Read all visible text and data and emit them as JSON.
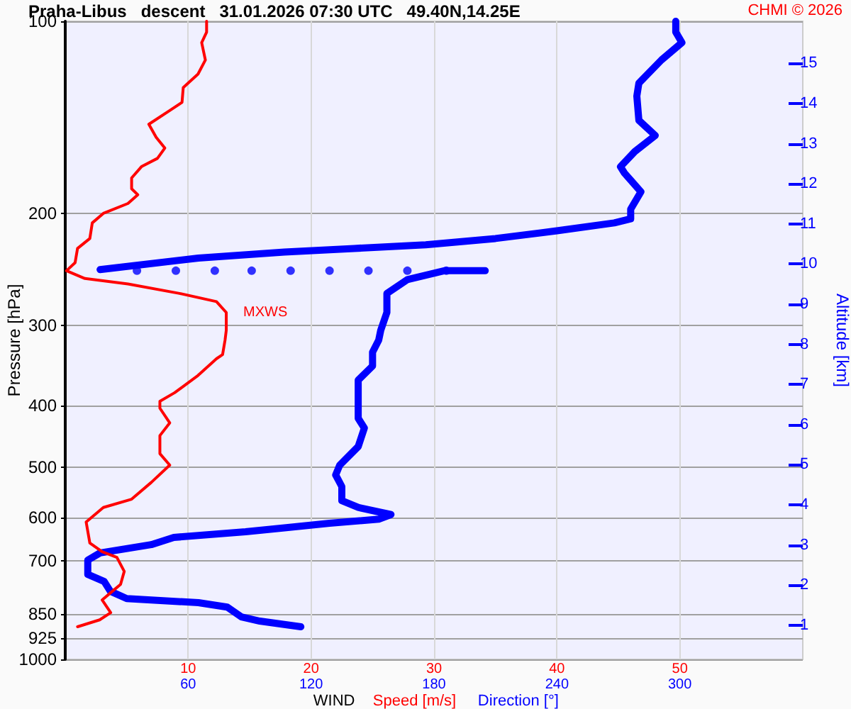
{
  "chart_data": {
    "type": "line",
    "title": "Praha-Libus   descent   31.01.2026 07:30 UTC   49.40N,14.25E",
    "annotations": [
      "CHMI © 2026",
      {
        "text": "MXWS",
        "x": 13.1,
        "y": 286
      }
    ],
    "xlabel": "WIND",
    "ylabel": "Pressure [hPa]",
    "y2label": "Altitude [km]",
    "xlim": [
      0,
      60
    ],
    "xticks": [
      10,
      20,
      30,
      40,
      50
    ],
    "x2lim": [
      0,
      360
    ],
    "x2ticks": [
      60,
      120,
      180,
      240,
      300
    ],
    "ylim": [
      1000,
      100
    ],
    "yticks": [
      100,
      200,
      300,
      400,
      500,
      600,
      700,
      850,
      925,
      1000
    ],
    "log": "y",
    "y2lim": [
      0.15,
      16.05
    ],
    "y2ticks": [
      1,
      2,
      3,
      4,
      5,
      6,
      7,
      8,
      9,
      10,
      11,
      12,
      13,
      14,
      15
    ],
    "grid": true,
    "legend": false,
    "series": [
      {
        "name": "Direction [°]",
        "color": "#0000ff",
        "axis": "x2",
        "marker": "none",
        "x": [
          298,
          298,
          301,
          291,
          280,
          279,
          280,
          288,
          278,
          271,
          273,
          281,
          276,
          276,
          268,
          240,
          210,
          176,
          141,
          107,
          65,
          17
        ],
        "values": [
          100,
          104,
          108,
          115,
          125,
          131,
          143,
          151,
          160,
          169,
          173,
          185,
          197,
          204,
          207,
          213,
          219,
          224,
          227,
          230,
          235,
          245
        ]
      },
      {
        "color": "#0000ff",
        "axis": "x2",
        "marker": "none",
        "x": [
          205,
          185,
          167,
          157,
          157,
          154,
          153,
          150,
          150,
          143,
          143,
          146,
          143,
          134,
          132,
          135,
          135,
          143,
          159,
          153,
          129,
          107,
          88,
          53,
          42,
          17,
          11,
          11,
          19,
          22,
          30,
          65,
          79,
          86,
          95,
          115
        ],
        "values": [
          246,
          246,
          254,
          267,
          286,
          305,
          316,
          330,
          347,
          365,
          419,
          434,
          464,
          496,
          514,
          536,
          564,
          578,
          593,
          603,
          612,
          622,
          631,
          644,
          661,
          681,
          699,
          736,
          755,
          782,
          803,
          815,
          828,
          858,
          871,
          889
        ]
      },
      {
        "type": "scatter",
        "color": "#0000ff",
        "axis": "x2",
        "marker": "circle",
        "x": [
          35,
          54,
          73,
          91,
          110,
          129,
          148,
          167,
          186
        ],
        "values": [
          246,
          246,
          246,
          246,
          246,
          246,
          246,
          246,
          246
        ]
      },
      {
        "name": "Speed [m/s]",
        "color": "#ff0000",
        "marker": "none",
        "x": [
          11.5,
          11.5,
          11.1,
          11.4,
          10.8,
          9.6,
          9.5,
          8.5,
          6.8,
          7.4,
          8.1,
          7.5,
          6.2,
          5.4,
          5.4,
          5.9,
          5.1,
          3.1,
          2.2,
          2.0,
          1.0,
          0.8,
          0.1,
          1.6,
          5.1,
          9.3,
          12.3,
          13.1,
          13.1,
          13.0,
          12.8,
          12.3,
          10.8,
          8.9,
          7.7,
          7.7,
          8.5,
          7.7,
          7.7,
          8.5,
          7.0,
          5.4,
          3.1,
          1.7,
          2.0,
          3.0,
          4.2,
          4.8,
          4.5,
          3.7,
          3.0,
          3.7,
          2.8,
          1.0
        ],
        "values": [
          100,
          104,
          108,
          115,
          121,
          127,
          134,
          138,
          145,
          152,
          158,
          164,
          169,
          176,
          183,
          187,
          193,
          200,
          207,
          219,
          227,
          239,
          246,
          253,
          258,
          267,
          275,
          286,
          305,
          316,
          333,
          338,
          359,
          382,
          394,
          404,
          426,
          446,
          476,
          496,
          528,
          561,
          578,
          609,
          657,
          678,
          692,
          728,
          763,
          786,
          807,
          845,
          867,
          889
        ]
      }
    ]
  }
}
